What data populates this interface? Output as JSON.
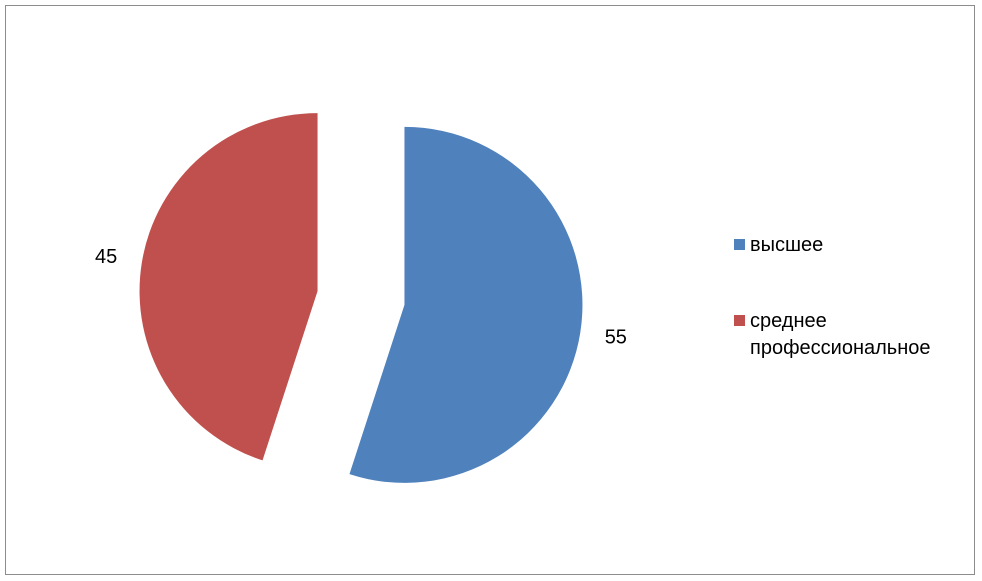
{
  "chart_data": {
    "type": "pie",
    "title": "",
    "exploded": true,
    "start_angle_deg": 0,
    "direction": "clockwise",
    "show_data_labels": true,
    "legend_position": "right",
    "slices": [
      {
        "label": "высшее",
        "value": 55,
        "display": "55",
        "color": "#4F81BD"
      },
      {
        "label": "среднее профессиональное",
        "value": 45,
        "display": "45",
        "color": "#C0504D"
      }
    ]
  }
}
